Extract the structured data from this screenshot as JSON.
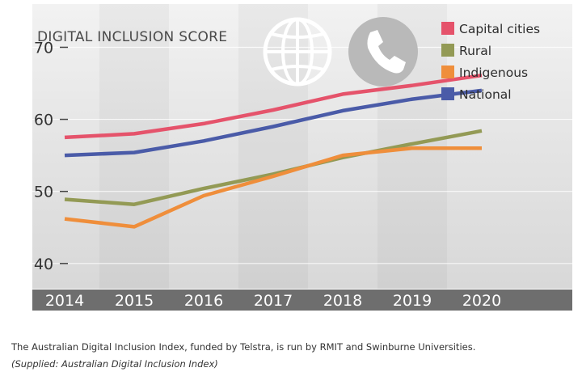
{
  "chart_data": {
    "type": "line",
    "title": "DIGITAL INCLUSION SCORE",
    "categories": [
      "2014",
      "2015",
      "2016",
      "2017",
      "2018",
      "2019",
      "2020"
    ],
    "series": [
      {
        "name": "Capital cities",
        "color": "#e5536b",
        "values": [
          57.5,
          58.0,
          59.4,
          61.3,
          63.5,
          64.7,
          66.1
        ]
      },
      {
        "name": "Rural",
        "color": "#939a55",
        "values": [
          48.9,
          48.2,
          50.4,
          52.4,
          54.7,
          56.6,
          58.4
        ]
      },
      {
        "name": "Indigenous",
        "color": "#ef8e3b",
        "values": [
          46.2,
          45.1,
          49.4,
          52.1,
          55.0,
          56.0,
          56.0
        ]
      },
      {
        "name": "National",
        "color": "#4a5ba8",
        "values": [
          55.0,
          55.4,
          57.0,
          59.0,
          61.2,
          62.8,
          64.0
        ]
      }
    ],
    "yticks": [
      40,
      50,
      60,
      70
    ],
    "ylim": [
      36.5,
      76
    ],
    "xlabel": "",
    "ylabel": "",
    "legend": "top-right",
    "icons": [
      "globe-icon",
      "phone-icon"
    ]
  },
  "caption": {
    "text": "The Australian Digital Inclusion Index, funded by Telstra, is run by RMIT and Swinburne Universities.",
    "source": "(Supplied: Australian Digital Inclusion Index)"
  }
}
